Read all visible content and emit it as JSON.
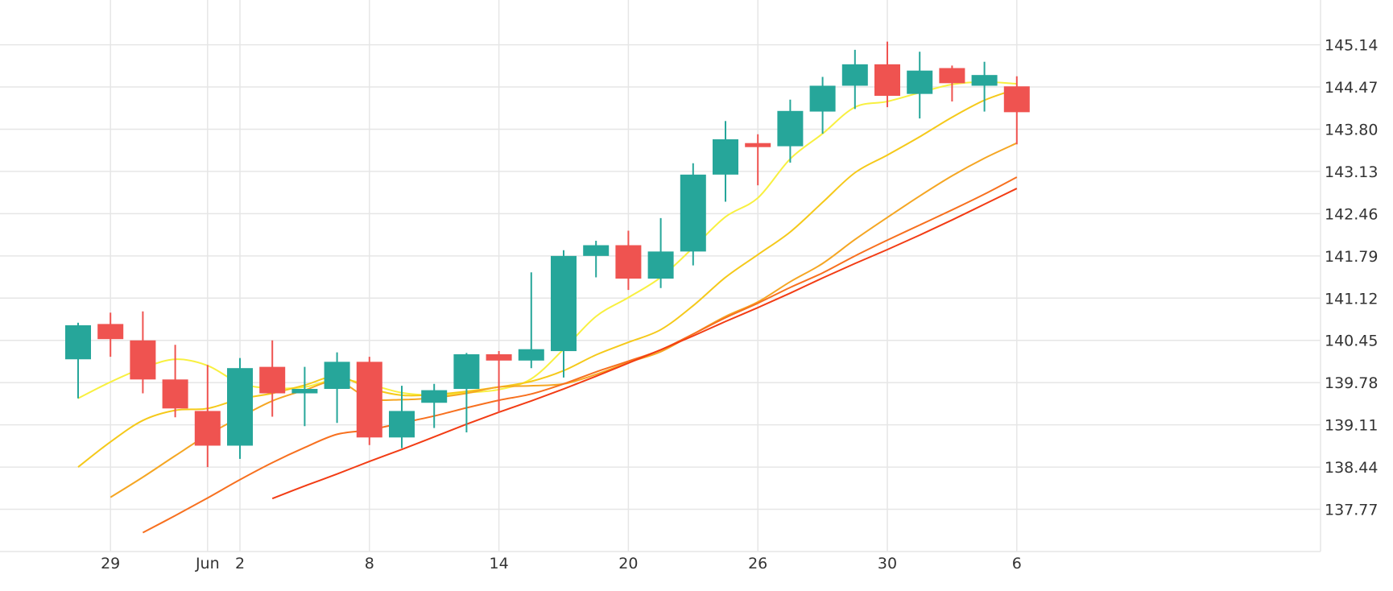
{
  "chart_data": {
    "type": "candlestick",
    "title": "",
    "xlabel": "",
    "ylabel": "",
    "grid": true,
    "legend": "none",
    "ylim": [
      137.1,
      145.85
    ],
    "y_ticks": [
      137.77,
      138.44,
      139.11,
      139.78,
      140.45,
      141.12,
      141.79,
      142.46,
      143.13,
      143.8,
      144.47,
      145.14
    ],
    "x_tick_labels": [
      {
        "index": 1,
        "label": "29"
      },
      {
        "index": 4,
        "label": "Jun"
      },
      {
        "index": 5,
        "label": "2"
      },
      {
        "index": 9,
        "label": "8"
      },
      {
        "index": 13,
        "label": "14"
      },
      {
        "index": 17,
        "label": "20"
      },
      {
        "index": 21,
        "label": "26"
      },
      {
        "index": 25,
        "label": "30"
      },
      {
        "index": 29,
        "label": "6"
      }
    ],
    "colors": {
      "up": "#26a69a",
      "down": "#ef5350",
      "grid": "#e6e6e6"
    },
    "candles": [
      {
        "o": 140.15,
        "h": 140.73,
        "l": 139.53,
        "c": 140.69
      },
      {
        "o": 140.71,
        "h": 140.89,
        "l": 140.19,
        "c": 140.47
      },
      {
        "o": 140.45,
        "h": 140.91,
        "l": 139.61,
        "c": 139.83
      },
      {
        "o": 139.83,
        "h": 140.38,
        "l": 139.23,
        "c": 139.37
      },
      {
        "o": 139.33,
        "h": 140.06,
        "l": 138.44,
        "c": 138.78
      },
      {
        "o": 138.78,
        "h": 140.17,
        "l": 138.57,
        "c": 140.01
      },
      {
        "o": 140.03,
        "h": 140.45,
        "l": 139.24,
        "c": 139.61
      },
      {
        "o": 139.61,
        "h": 140.03,
        "l": 139.09,
        "c": 139.68
      },
      {
        "o": 139.68,
        "h": 140.26,
        "l": 139.14,
        "c": 140.11
      },
      {
        "o": 140.11,
        "h": 140.19,
        "l": 138.79,
        "c": 138.91
      },
      {
        "o": 138.91,
        "h": 139.73,
        "l": 138.74,
        "c": 139.33
      },
      {
        "o": 139.46,
        "h": 139.76,
        "l": 139.06,
        "c": 139.66
      },
      {
        "o": 139.68,
        "h": 140.25,
        "l": 138.99,
        "c": 140.23
      },
      {
        "o": 140.23,
        "h": 140.28,
        "l": 139.31,
        "c": 140.13
      },
      {
        "o": 140.13,
        "h": 141.53,
        "l": 140.01,
        "c": 140.31
      },
      {
        "o": 140.28,
        "h": 141.88,
        "l": 139.86,
        "c": 141.79
      },
      {
        "o": 141.79,
        "h": 142.03,
        "l": 141.45,
        "c": 141.96
      },
      {
        "o": 141.96,
        "h": 142.19,
        "l": 141.25,
        "c": 141.43
      },
      {
        "o": 141.43,
        "h": 142.39,
        "l": 141.28,
        "c": 141.86
      },
      {
        "o": 141.86,
        "h": 143.26,
        "l": 141.64,
        "c": 143.08
      },
      {
        "o": 143.08,
        "h": 143.93,
        "l": 142.65,
        "c": 143.64
      },
      {
        "o": 143.58,
        "h": 143.72,
        "l": 142.91,
        "c": 143.52
      },
      {
        "o": 143.53,
        "h": 144.27,
        "l": 143.27,
        "c": 144.09
      },
      {
        "o": 144.08,
        "h": 144.63,
        "l": 143.73,
        "c": 144.49
      },
      {
        "o": 144.49,
        "h": 145.06,
        "l": 144.12,
        "c": 144.83
      },
      {
        "o": 144.83,
        "h": 145.19,
        "l": 144.15,
        "c": 144.33
      },
      {
        "o": 144.36,
        "h": 145.03,
        "l": 143.97,
        "c": 144.73
      },
      {
        "o": 144.77,
        "h": 144.81,
        "l": 144.24,
        "c": 144.53
      },
      {
        "o": 144.49,
        "h": 144.87,
        "l": 144.08,
        "c": 144.66
      },
      {
        "o": 144.48,
        "h": 144.64,
        "l": 143.56,
        "c": 144.07
      }
    ],
    "series": [
      {
        "color": "#f8f040",
        "values": [
          139.53,
          139.79,
          140.01,
          140.15,
          140.05,
          139.77,
          139.69,
          139.71,
          139.83,
          139.75,
          139.62,
          139.58,
          139.62,
          139.67,
          139.84,
          140.31,
          140.83,
          141.13,
          141.45,
          141.92,
          142.41,
          142.71,
          143.33,
          143.73,
          144.15,
          144.24,
          144.38,
          144.51,
          144.55,
          144.52
        ]
      },
      {
        "color": "#f5c91a",
        "values": [
          138.44,
          138.84,
          139.18,
          139.34,
          139.37,
          139.52,
          139.61,
          139.74,
          139.88,
          139.69,
          139.58,
          139.59,
          139.64,
          139.71,
          139.8,
          139.97,
          140.22,
          140.42,
          140.62,
          141.0,
          141.45,
          141.81,
          142.17,
          142.64,
          143.11,
          143.39,
          143.68,
          143.99,
          144.26,
          144.44
        ]
      },
      {
        "color": "#f5a623",
        "values": [
          null,
          137.96,
          138.28,
          138.62,
          138.95,
          139.23,
          139.49,
          139.66,
          139.8,
          139.53,
          139.51,
          139.54,
          139.61,
          139.71,
          139.73,
          139.76,
          139.91,
          140.1,
          140.27,
          140.55,
          140.83,
          141.06,
          141.38,
          141.67,
          142.05,
          142.4,
          142.74,
          143.06,
          143.34,
          143.58
        ]
      },
      {
        "color": "#f7701f",
        "values": [
          null,
          null,
          137.4,
          137.67,
          137.95,
          138.24,
          138.51,
          138.75,
          138.96,
          139.03,
          139.14,
          139.25,
          139.38,
          139.5,
          139.6,
          139.76,
          139.95,
          140.12,
          140.3,
          140.55,
          140.81,
          141.04,
          141.29,
          141.52,
          141.79,
          142.04,
          142.28,
          142.52,
          142.77,
          143.04
        ]
      },
      {
        "color": "#f23c14",
        "values": [
          null,
          null,
          null,
          null,
          null,
          null,
          137.94,
          138.14,
          138.33,
          138.53,
          138.72,
          138.92,
          139.12,
          139.31,
          139.49,
          139.68,
          139.88,
          140.09,
          140.3,
          140.52,
          140.75,
          140.97,
          141.2,
          141.44,
          141.67,
          141.89,
          142.12,
          142.36,
          142.61,
          142.86
        ]
      }
    ]
  }
}
